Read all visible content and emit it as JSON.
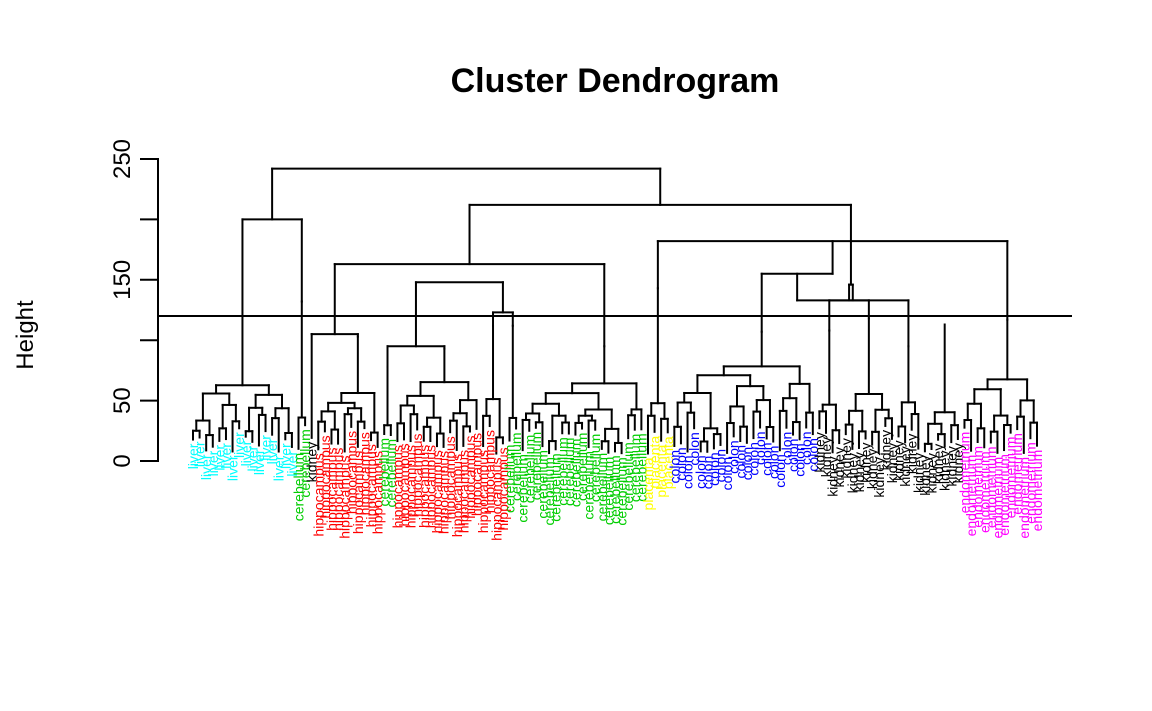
{
  "chart_data": {
    "type": "dendrogram",
    "title": "Cluster Dendrogram",
    "ylabel": "Height",
    "xlabel": "",
    "ylim": [
      0,
      250
    ],
    "y_ticks": [
      0,
      50,
      100,
      150,
      200,
      250
    ],
    "y_tick_labels": [
      "0",
      "50",
      "",
      "150",
      "",
      "250"
    ],
    "cut_height": 120,
    "colors": {
      "liver": "#00FFFF",
      "cerebellum": "#00CD00",
      "hippocampus": "#FF0000",
      "kidney": "#000000",
      "placenta": "#FFFF00",
      "colon": "#0000FF",
      "endometrium": "#FF00FF"
    },
    "groups": [
      {
        "label": "liver",
        "count": 16,
        "height": 120
      },
      {
        "label": "cerebellum",
        "count": 2,
        "height": 132
      },
      {
        "label": "kidney",
        "count": 1,
        "height": 105
      },
      {
        "label": "hippocampus",
        "count": 10,
        "height": 103
      },
      {
        "label": "cerebellum",
        "count": 2,
        "height": 78
      },
      {
        "label": "hippocampus",
        "count": 13,
        "height": 93
      },
      {
        "label": "hippocampus",
        "count": 4,
        "height": 112
      },
      {
        "label": "cerebellum",
        "count": 2,
        "height": 112
      },
      {
        "label": "cerebellum",
        "count": 19,
        "height": 95
      },
      {
        "label": "placenta",
        "count": 4,
        "height": 143
      },
      {
        "label": "colon",
        "count": 22,
        "height": 107
      },
      {
        "label": "kidney",
        "count": 4,
        "height": 108
      },
      {
        "label": "kidney",
        "count": 8,
        "height": 118
      },
      {
        "label": "kidney",
        "count": 4,
        "height": 95
      },
      {
        "label": "kidney",
        "count": 6,
        "height": 113
      },
      {
        "label": "endometrium",
        "count": 12,
        "height": 117
      }
    ],
    "merges": [
      {
        "groups": [
          0,
          1
        ],
        "height": 200
      },
      {
        "groups": [
          2,
          3
        ],
        "height": 105
      },
      {
        "groups": [
          4,
          5
        ],
        "height": 95
      },
      {
        "groups": [
          6,
          7
        ],
        "height": 123
      },
      {
        "groups": [
          5,
          7
        ],
        "height": 148
      },
      {
        "groups": [
          3,
          8
        ],
        "height": 163
      },
      {
        "groups": [
          9,
          15
        ],
        "height": 182
      },
      {
        "groups": [
          10,
          15
        ],
        "height": 155
      },
      {
        "groups": [
          11,
          12
        ],
        "height": 133
      },
      {
        "groups": [
          13,
          15
        ],
        "height": 133
      },
      {
        "groups": [
          11,
          15
        ],
        "height": 146
      },
      {
        "groups": [
          3,
          15
        ],
        "height": 212
      },
      {
        "groups": [
          0,
          15
        ],
        "height": 242
      }
    ]
  }
}
